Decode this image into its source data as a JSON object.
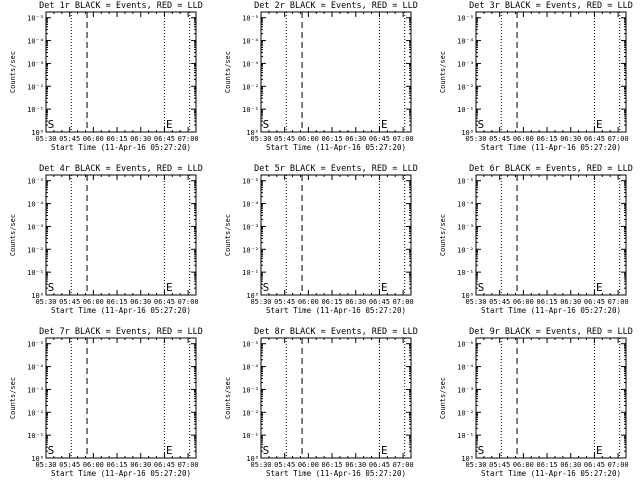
{
  "chart_data": [
    {
      "type": "line",
      "title": "Det 1r BLACK = Events, RED = LLD",
      "xlabel": "Start Time (11-Apr-16 05:27:20)",
      "ylabel": "Counts/sec",
      "x_tick_labels": [
        "05:30",
        "05:45",
        "06:00",
        "06:15",
        "06:30",
        "06:45",
        "07:00"
      ],
      "y_tick_labels": [
        "10⁰",
        "10⁻¹",
        "10⁻²",
        "10⁻³",
        "10⁻⁴",
        "10⁻⁵"
      ],
      "y_scale": "log",
      "markers": [
        {
          "label": "S",
          "time": "05:31"
        },
        {
          "label": "E",
          "time": "06:46"
        }
      ],
      "series": []
    },
    {
      "type": "line",
      "title": "Det 2r BLACK = Events, RED = LLD",
      "xlabel": "Start Time (11-Apr-16 05:27:20)",
      "ylabel": "Counts/sec",
      "x_tick_labels": [
        "05:30",
        "05:45",
        "06:00",
        "06:15",
        "06:30",
        "06:45",
        "07:00"
      ],
      "y_tick_labels": [
        "10⁰",
        "10⁻¹",
        "10⁻²",
        "10⁻³",
        "10⁻⁴",
        "10⁻⁵"
      ],
      "y_scale": "log",
      "markers": [
        {
          "label": "S",
          "time": "05:31"
        },
        {
          "label": "E",
          "time": "06:46"
        }
      ],
      "series": []
    },
    {
      "type": "line",
      "title": "Det 3r BLACK = Events, RED = LLD",
      "xlabel": "Start Time (11-Apr-16 05:27:20)",
      "ylabel": "Counts/sec",
      "x_tick_labels": [
        "05:30",
        "05:45",
        "06:00",
        "06:15",
        "06:30",
        "06:45",
        "07:00"
      ],
      "y_tick_labels": [
        "10⁰",
        "10⁻¹",
        "10⁻²",
        "10⁻³",
        "10⁻⁴",
        "10⁻⁵"
      ],
      "y_scale": "log",
      "markers": [
        {
          "label": "S",
          "time": "05:31"
        },
        {
          "label": "E",
          "time": "06:46"
        }
      ],
      "series": []
    },
    {
      "type": "line",
      "title": "Det 4r BLACK = Events, RED = LLD",
      "xlabel": "Start Time (11-Apr-16 05:27:20)",
      "ylabel": "Counts/sec",
      "x_tick_labels": [
        "05:30",
        "05:45",
        "06:00",
        "06:15",
        "06:30",
        "06:45",
        "07:00"
      ],
      "y_tick_labels": [
        "10⁰",
        "10⁻¹",
        "10⁻²",
        "10⁻³",
        "10⁻⁴",
        "10⁻⁵"
      ],
      "y_scale": "log",
      "markers": [
        {
          "label": "S",
          "time": "05:31"
        },
        {
          "label": "E",
          "time": "06:46"
        }
      ],
      "series": []
    },
    {
      "type": "line",
      "title": "Det 5r BLACK = Events, RED = LLD",
      "xlabel": "Start Time (11-Apr-16 05:27:20)",
      "ylabel": "Counts/sec",
      "x_tick_labels": [
        "05:30",
        "05:45",
        "06:00",
        "06:15",
        "06:30",
        "06:45",
        "07:00"
      ],
      "y_tick_labels": [
        "10⁰",
        "10⁻¹",
        "10⁻²",
        "10⁻³",
        "10⁻⁴",
        "10⁻⁵"
      ],
      "y_scale": "log",
      "markers": [
        {
          "label": "S",
          "time": "05:31"
        },
        {
          "label": "E",
          "time": "06:46"
        }
      ],
      "series": []
    },
    {
      "type": "line",
      "title": "Det 6r BLACK = Events, RED = LLD",
      "xlabel": "Start Time (11-Apr-16 05:27:20)",
      "ylabel": "Counts/sec",
      "x_tick_labels": [
        "05:30",
        "05:45",
        "06:00",
        "06:15",
        "06:30",
        "06:45",
        "07:00"
      ],
      "y_tick_labels": [
        "10⁰",
        "10⁻¹",
        "10⁻²",
        "10⁻³",
        "10⁻⁴",
        "10⁻⁵"
      ],
      "y_scale": "log",
      "markers": [
        {
          "label": "S",
          "time": "05:31"
        },
        {
          "label": "E",
          "time": "06:46"
        }
      ],
      "series": []
    },
    {
      "type": "line",
      "title": "Det 7r BLACK = Events, RED = LLD",
      "xlabel": "Start Time (11-Apr-16 05:27:20)",
      "ylabel": "Counts/sec",
      "x_tick_labels": [
        "05:30",
        "05:45",
        "06:00",
        "06:15",
        "06:30",
        "06:45",
        "07:00"
      ],
      "y_tick_labels": [
        "10⁰",
        "10⁻¹",
        "10⁻²",
        "10⁻³",
        "10⁻⁴",
        "10⁻⁵"
      ],
      "y_scale": "log",
      "markers": [
        {
          "label": "S",
          "time": "05:31"
        },
        {
          "label": "E",
          "time": "06:46"
        }
      ],
      "series": []
    },
    {
      "type": "line",
      "title": "Det 8r BLACK = Events, RED = LLD",
      "xlabel": "Start Time (11-Apr-16 05:27:20)",
      "ylabel": "Counts/sec",
      "x_tick_labels": [
        "05:30",
        "05:45",
        "06:00",
        "06:15",
        "06:30",
        "06:45",
        "07:00"
      ],
      "y_tick_labels": [
        "10⁰",
        "10⁻¹",
        "10⁻²",
        "10⁻³",
        "10⁻⁴",
        "10⁻⁵"
      ],
      "y_scale": "log",
      "markers": [
        {
          "label": "S",
          "time": "05:31"
        },
        {
          "label": "E",
          "time": "06:46"
        }
      ],
      "series": []
    },
    {
      "type": "line",
      "title": "Det 9r BLACK = Events, RED = LLD",
      "xlabel": "Start Time (11-Apr-16 05:27:20)",
      "ylabel": "Counts/sec",
      "x_tick_labels": [
        "05:30",
        "05:45",
        "06:00",
        "06:15",
        "06:30",
        "06:45",
        "07:00"
      ],
      "y_tick_labels": [
        "10⁰",
        "10⁻¹",
        "10⁻²",
        "10⁻³",
        "10⁻⁴",
        "10⁻⁵"
      ],
      "y_scale": "log",
      "markers": [
        {
          "label": "S",
          "time": "05:31"
        },
        {
          "label": "E",
          "time": "06:46"
        }
      ],
      "series": []
    }
  ],
  "reference_lines": {
    "dotted_times": [
      "05:46",
      "06:45",
      "07:01"
    ],
    "dashed_times": [
      "05:56"
    ]
  },
  "x_range_minutes_after_0530": [
    0,
    95
  ],
  "colors": {
    "axes": "#000000",
    "background": "#ffffff"
  }
}
